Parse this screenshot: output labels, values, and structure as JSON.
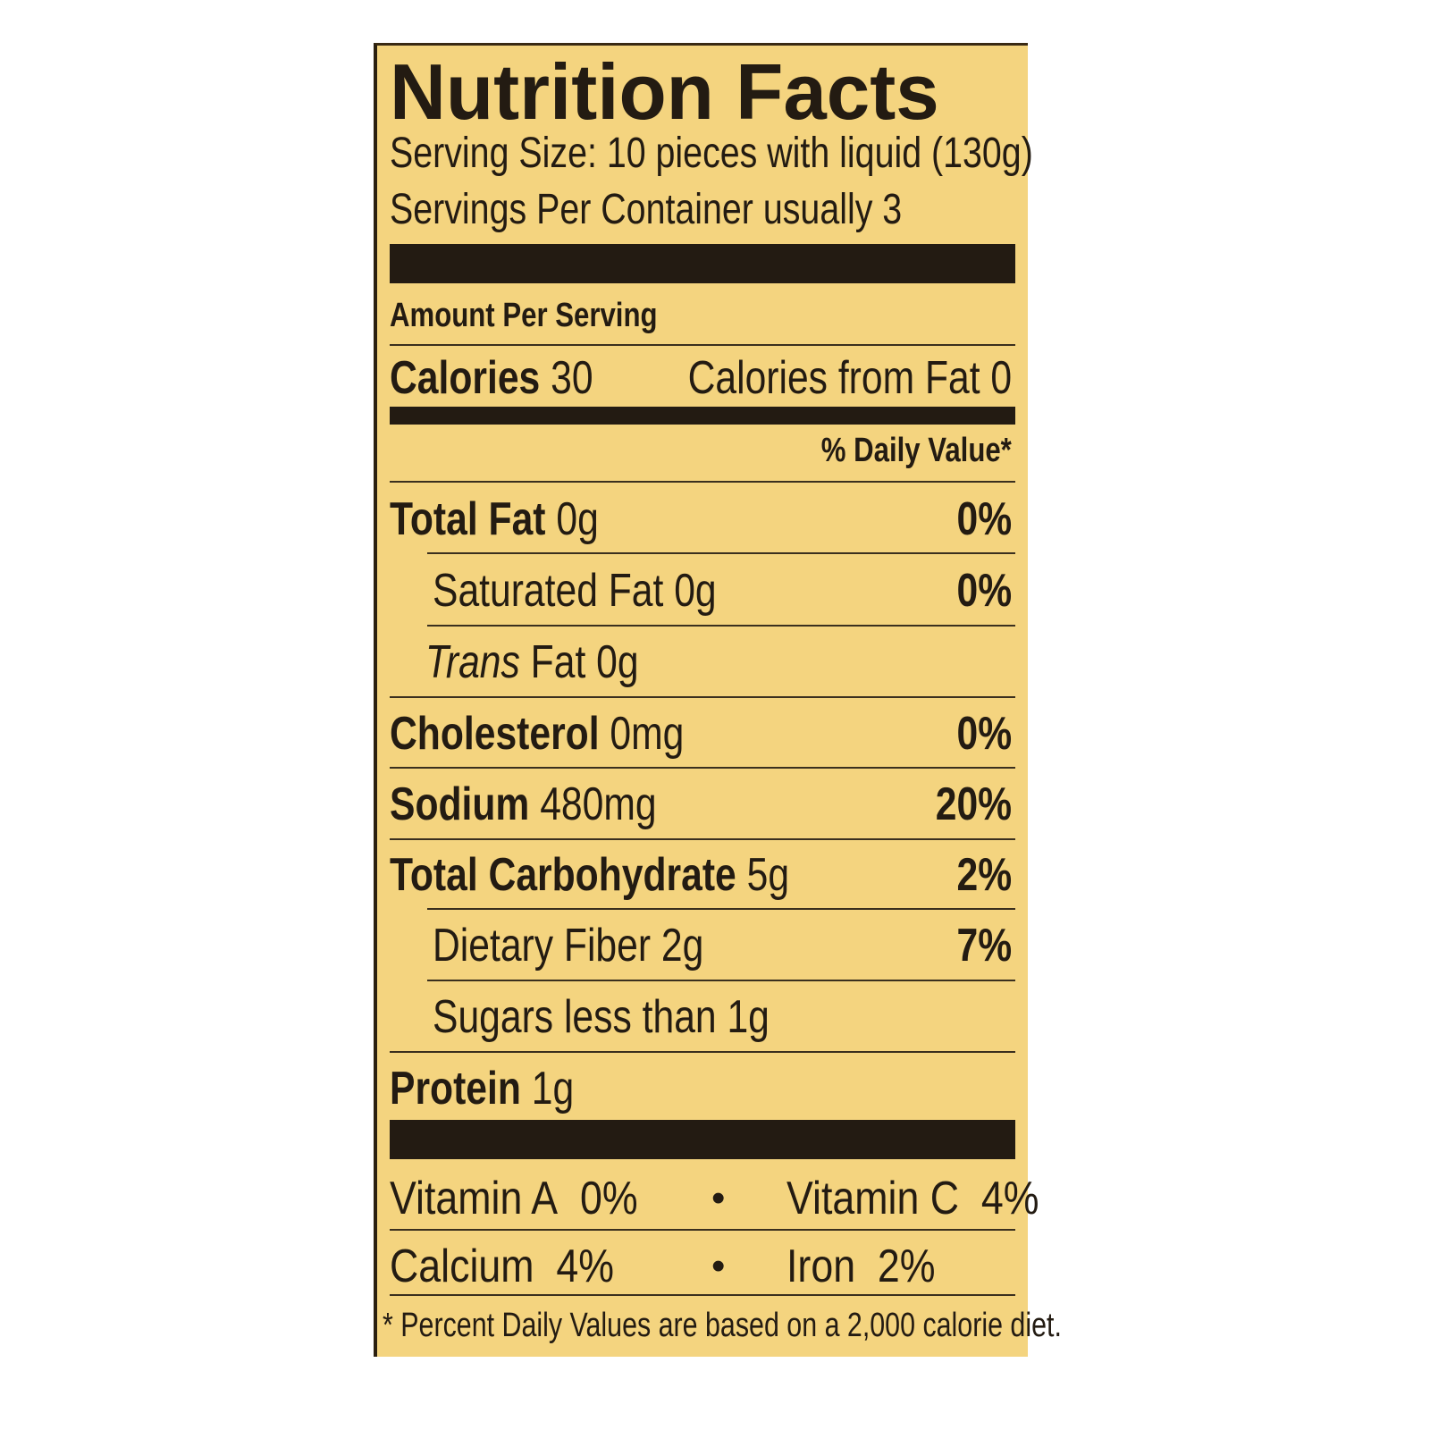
{
  "title": "Nutrition Facts",
  "serving_size": "Serving Size: 10 pieces with liquid (130g)",
  "servings_per_container": "Servings Per Container usually 3",
  "amount_per_serving": "Amount Per Serving",
  "calories": {
    "label": "Calories",
    "value": "30",
    "from_fat": "Calories from Fat 0"
  },
  "daily_value_header": "% Daily Value*",
  "nutrients": [
    {
      "name": "Total Fat",
      "amount": "0g",
      "dv": "0%"
    },
    {
      "name": "Saturated Fat",
      "amount": "0g",
      "dv": "0%"
    },
    {
      "name": "Trans",
      "name_suffix": "Fat",
      "amount": "0g",
      "dv": ""
    },
    {
      "name": "Cholesterol",
      "amount": "0mg",
      "dv": "0%"
    },
    {
      "name": "Sodium",
      "amount": "480mg",
      "dv": "20%"
    },
    {
      "name": "Total Carbohydrate",
      "amount": "5g",
      "dv": "2%"
    },
    {
      "name": "Dietary Fiber",
      "amount": "2g",
      "dv": "7%"
    },
    {
      "name": "Sugars",
      "amount": "less than 1g",
      "dv": ""
    },
    {
      "name": "Protein",
      "amount": "1g",
      "dv": ""
    }
  ],
  "vitamins": [
    {
      "name": "Vitamin A",
      "dv": "0%"
    },
    {
      "name": "Vitamin C",
      "dv": "4%"
    },
    {
      "name": "Calcium",
      "dv": "4%"
    },
    {
      "name": "Iron",
      "dv": "2%"
    }
  ],
  "bullet": "•",
  "footnote": "* Percent Daily Values are based on a 2,000 calorie diet.",
  "colors": {
    "label_bg": "#f4d47f",
    "ink": "#231b12"
  }
}
